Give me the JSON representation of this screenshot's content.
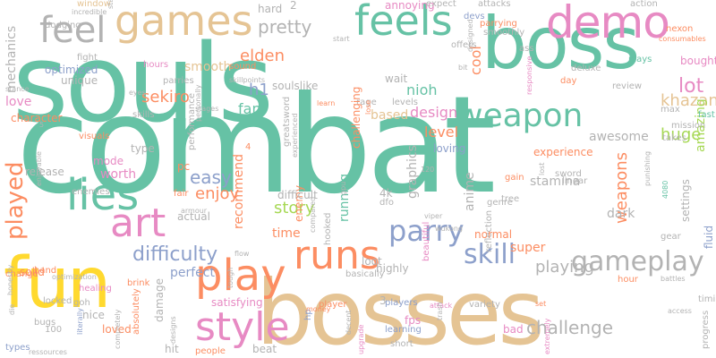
{
  "colors": {
    "teal": "#66c2a5",
    "tan": "#e5c494",
    "orange": "#fc8d62",
    "blue": "#8da0cb",
    "pink": "#e78ac3",
    "green": "#a6d854",
    "yellow": "#ffd92f",
    "gray": "#b3b3b3"
  },
  "words": [
    {
      "text": "combat",
      "color": "teal",
      "size": 150
    },
    {
      "text": "souls",
      "color": "teal",
      "size": 120
    },
    {
      "text": "bosses",
      "color": "tan",
      "size": 100
    },
    {
      "text": "boss",
      "color": "teal",
      "size": 80
    },
    {
      "text": "fun",
      "color": "yellow",
      "size": 78
    },
    {
      "text": "demo",
      "color": "pink",
      "size": 50
    },
    {
      "text": "games",
      "color": "tan",
      "size": 46
    },
    {
      "text": "feels",
      "color": "teal",
      "size": 46
    },
    {
      "text": "feel",
      "color": "gray",
      "size": 40
    },
    {
      "text": "lies",
      "color": "teal",
      "size": 48
    },
    {
      "text": "art",
      "color": "pink",
      "size": 44
    },
    {
      "text": "play",
      "color": "orange",
      "size": 48
    },
    {
      "text": "style",
      "color": "pink",
      "size": 44
    },
    {
      "text": "runs",
      "color": "orange",
      "size": 44
    },
    {
      "text": "parry",
      "color": "blue",
      "size": 32
    },
    {
      "text": "skill",
      "color": "blue",
      "size": 30
    },
    {
      "text": "gameplay",
      "color": "gray",
      "size": 30
    },
    {
      "text": "weapon",
      "color": "teal",
      "size": 36
    },
    {
      "text": "played",
      "color": "orange",
      "size": 26
    },
    {
      "text": "difficulty",
      "color": "blue",
      "size": 22
    },
    {
      "text": "playing",
      "color": "gray",
      "size": 18
    },
    {
      "text": "challenge",
      "color": "gray",
      "size": 20
    },
    {
      "text": "lot",
      "color": "pink",
      "size": 22
    },
    {
      "text": "khazan",
      "color": "tan",
      "size": 18
    },
    {
      "text": "huge",
      "color": "green",
      "size": 18
    },
    {
      "text": "easy",
      "color": "blue",
      "size": 20
    },
    {
      "text": "enjoy",
      "color": "orange",
      "size": 18
    },
    {
      "text": "story",
      "color": "green",
      "size": 18
    },
    {
      "text": "sekiro",
      "color": "orange",
      "size": 18
    },
    {
      "text": "h1",
      "color": "blue",
      "size": 18
    },
    {
      "text": "elden",
      "color": "orange",
      "size": 18
    },
    {
      "text": "pretty",
      "color": "gray",
      "size": 20
    },
    {
      "text": "hard",
      "color": "gray",
      "size": 12
    },
    {
      "text": "2",
      "color": "gray",
      "size": 12
    },
    {
      "text": "fan",
      "color": "teal",
      "size": 16
    },
    {
      "text": "nioh",
      "color": "teal",
      "size": 16
    },
    {
      "text": "design",
      "color": "pink",
      "size": 16
    },
    {
      "text": "level",
      "color": "orange",
      "size": 16
    },
    {
      "text": "loving",
      "color": "blue",
      "size": 12
    },
    {
      "text": "based",
      "color": "tan",
      "size": 14
    },
    {
      "text": "awesome",
      "color": "gray",
      "size": 14
    },
    {
      "text": "experience",
      "color": "orange",
      "size": 12
    },
    {
      "text": "cool",
      "color": "orange",
      "size": 16
    },
    {
      "text": "amazing",
      "color": "green",
      "size": 14
    },
    {
      "text": "weapons",
      "color": "orange",
      "size": 18
    },
    {
      "text": "dark",
      "color": "gray",
      "size": 14
    },
    {
      "text": "stamina",
      "color": "gray",
      "size": 14
    },
    {
      "text": "worth",
      "color": "pink",
      "size": 14
    },
    {
      "text": "mode",
      "color": "pink",
      "size": 12
    },
    {
      "text": "love",
      "color": "pink",
      "size": 14
    },
    {
      "text": "mechanics",
      "color": "gray",
      "size": 14
    },
    {
      "text": "smooth",
      "color": "tan",
      "size": 14
    },
    {
      "text": "graphics",
      "color": "gray",
      "size": 14
    },
    {
      "text": "running",
      "color": "teal",
      "size": 14
    },
    {
      "text": "recommend",
      "color": "orange",
      "size": 14
    },
    {
      "text": "time",
      "color": "orange",
      "size": 14
    },
    {
      "text": "super",
      "color": "orange",
      "size": 14
    },
    {
      "text": "anime",
      "color": "gray",
      "size": 14
    },
    {
      "text": "perfect",
      "color": "blue",
      "size": 14
    },
    {
      "text": "enemy",
      "color": "orange",
      "size": 12
    },
    {
      "text": "unique",
      "color": "gray",
      "size": 12
    },
    {
      "text": "optimized",
      "color": "blue",
      "size": 12
    },
    {
      "text": "window",
      "color": "tan",
      "size": 10
    },
    {
      "text": "incredible",
      "color": "gray",
      "size": 8
    },
    {
      "text": "dodging",
      "color": "gray",
      "size": 10
    },
    {
      "text": "fight",
      "color": "gray",
      "size": 10
    },
    {
      "text": "hours",
      "color": "pink",
      "size": 10
    },
    {
      "text": "parries",
      "color": "gray",
      "size": 10
    },
    {
      "text": "soulslike",
      "color": "gray",
      "size": 12
    },
    {
      "text": "sound",
      "color": "orange",
      "size": 10
    },
    {
      "text": "wait",
      "color": "gray",
      "size": 12
    },
    {
      "text": "annoying",
      "color": "pink",
      "size": 12
    },
    {
      "text": "expect",
      "color": "gray",
      "size": 10
    },
    {
      "text": "devs",
      "color": "blue",
      "size": 10
    },
    {
      "text": "attacks",
      "color": "gray",
      "size": 10
    },
    {
      "text": "action",
      "color": "gray",
      "size": 10
    },
    {
      "text": "consumables",
      "color": "orange",
      "size": 8
    },
    {
      "text": "parrying",
      "color": "orange",
      "size": 10
    },
    {
      "text": "smoothly",
      "color": "gray",
      "size": 10
    },
    {
      "text": "offers",
      "color": "gray",
      "size": 10
    },
    {
      "text": "ass",
      "color": "gray",
      "size": 10
    },
    {
      "text": "plays",
      "color": "teal",
      "size": 10
    },
    {
      "text": "bought",
      "color": "pink",
      "size": 12
    },
    {
      "text": "deluxe",
      "color": "gray",
      "size": 10
    },
    {
      "text": "day",
      "color": "orange",
      "size": 10
    },
    {
      "text": "review",
      "color": "gray",
      "size": 10
    },
    {
      "text": "levels",
      "color": "gray",
      "size": 10
    },
    {
      "text": "fast",
      "color": "teal",
      "size": 10
    },
    {
      "text": "mission",
      "color": "gray",
      "size": 10
    },
    {
      "text": "max",
      "color": "gray",
      "size": 10
    },
    {
      "text": "takes",
      "color": "gray",
      "size": 10
    },
    {
      "text": "settings",
      "color": "gray",
      "size": 12
    },
    {
      "text": "fluid",
      "color": "blue",
      "size": 12
    },
    {
      "text": "timing",
      "color": "gray",
      "size": 10
    },
    {
      "text": "access",
      "color": "gray",
      "size": 8
    },
    {
      "text": "progress",
      "color": "gray",
      "size": 10
    },
    {
      "text": "battles",
      "color": "gray",
      "size": 8
    },
    {
      "text": "hour",
      "color": "orange",
      "size": 10
    },
    {
      "text": "gear",
      "color": "gray",
      "size": 10
    },
    {
      "text": "punishing",
      "color": "gray",
      "size": 8
    },
    {
      "text": "4080",
      "color": "teal",
      "size": 8
    },
    {
      "text": "set",
      "color": "orange",
      "size": 8
    },
    {
      "text": "bad",
      "color": "pink",
      "size": 12
    },
    {
      "text": "extremely",
      "color": "pink",
      "size": 8
    },
    {
      "text": "variety",
      "color": "gray",
      "size": 10
    },
    {
      "text": "players",
      "color": "blue",
      "size": 10
    },
    {
      "text": "fps",
      "color": "pink",
      "size": 12
    },
    {
      "text": "learning",
      "color": "blue",
      "size": 10
    },
    {
      "text": "short",
      "color": "gray",
      "size": 10
    },
    {
      "text": "upgrade",
      "color": "pink",
      "size": 8
    },
    {
      "text": "decent",
      "color": "gray",
      "size": 8
    },
    {
      "text": "hp",
      "color": "blue",
      "size": 10
    },
    {
      "text": "player",
      "color": "orange",
      "size": 10
    },
    {
      "text": "beat",
      "color": "gray",
      "size": 12
    },
    {
      "text": "people",
      "color": "orange",
      "size": 10
    },
    {
      "text": "hit",
      "color": "gray",
      "size": 12
    },
    {
      "text": "damage",
      "color": "gray",
      "size": 12
    },
    {
      "text": "satisfying",
      "color": "pink",
      "size": 12
    },
    {
      "text": "highly",
      "color": "gray",
      "size": 12
    },
    {
      "text": "basically",
      "color": "gray",
      "size": 10
    },
    {
      "text": "loot",
      "color": "gray",
      "size": 12
    },
    {
      "text": "normal",
      "color": "orange",
      "size": 12
    },
    {
      "text": "3",
      "color": "gray",
      "size": 12
    },
    {
      "text": "actual",
      "color": "gray",
      "size": 12
    },
    {
      "text": "fair",
      "color": "orange",
      "size": 10
    },
    {
      "text": "pc",
      "color": "orange",
      "size": 12
    },
    {
      "text": "type",
      "color": "gray",
      "size": 12
    },
    {
      "text": "visuals",
      "color": "orange",
      "size": 10
    },
    {
      "text": "character",
      "color": "orange",
      "size": 12
    },
    {
      "text": "release",
      "color": "gray",
      "size": 12
    },
    {
      "text": "solid",
      "color": "orange",
      "size": 12
    },
    {
      "text": "enemies",
      "color": "gray",
      "size": 10
    },
    {
      "text": "brink",
      "color": "orange",
      "size": 10
    },
    {
      "text": "locked",
      "color": "gray",
      "size": 10
    },
    {
      "text": "healing",
      "color": "pink",
      "size": 10
    },
    {
      "text": "goh",
      "color": "gray",
      "size": 10
    },
    {
      "text": "nice",
      "color": "gray",
      "size": 12
    },
    {
      "text": "loved",
      "color": "orange",
      "size": 12
    },
    {
      "text": "bugs",
      "color": "gray",
      "size": 10
    },
    {
      "text": "100",
      "color": "gray",
      "size": 10
    },
    {
      "text": "types",
      "color": "blue",
      "size": 10
    },
    {
      "text": "change",
      "color": "orange",
      "size": 10
    },
    {
      "text": "die",
      "color": "gray",
      "size": 8
    },
    {
      "text": "hand",
      "color": "orange",
      "size": 10
    },
    {
      "text": "optimization",
      "color": "gray",
      "size": 8
    },
    {
      "text": "ressources",
      "color": "gray",
      "size": 8
    },
    {
      "text": "skills",
      "color": "gray",
      "size": 10
    },
    {
      "text": "performance",
      "color": "gray",
      "size": 10
    },
    {
      "text": "stages",
      "color": "gray",
      "size": 8
    },
    {
      "text": "eyes",
      "color": "gray",
      "size": 8
    },
    {
      "text": "greatsword",
      "color": "gray",
      "size": 10
    },
    {
      "text": "learn",
      "color": "orange",
      "size": 8
    },
    {
      "text": "start",
      "color": "gray",
      "size": 8
    },
    {
      "text": "rage",
      "color": "gray",
      "size": 10
    },
    {
      "text": "lose",
      "color": "orange",
      "size": 8
    },
    {
      "text": "bit",
      "color": "gray",
      "size": 8
    },
    {
      "text": "sword",
      "color": "gray",
      "size": 10
    },
    {
      "text": "linear",
      "color": "gray",
      "size": 10
    },
    {
      "text": "gain",
      "color": "orange",
      "size": 10
    },
    {
      "text": "tree",
      "color": "gray",
      "size": 10
    },
    {
      "text": "120",
      "color": "gray",
      "size": 8
    },
    {
      "text": "4k",
      "color": "gray",
      "size": 12
    },
    {
      "text": "dfo",
      "color": "gray",
      "size": 10
    },
    {
      "text": "viper",
      "color": "gray",
      "size": 8
    },
    {
      "text": "wukong",
      "color": "gray",
      "size": 8
    },
    {
      "text": "attack",
      "color": "pink",
      "size": 8
    },
    {
      "text": "trash",
      "color": "gray",
      "size": 8
    },
    {
      "text": "money",
      "color": "orange",
      "size": 8
    },
    {
      "text": "genre",
      "color": "gray",
      "size": 10
    },
    {
      "text": "nexon",
      "color": "orange",
      "size": 10
    },
    {
      "text": "stance",
      "color": "gray",
      "size": 8
    },
    {
      "text": "flow",
      "color": "gray",
      "size": 8
    },
    {
      "text": "armour",
      "color": "gray",
      "size": 8
    },
    {
      "text": "4",
      "color": "orange",
      "size": 10
    },
    {
      "text": "stat",
      "color": "gray",
      "size": 8
    },
    {
      "text": "skillpoints",
      "color": "gray",
      "size": 8
    },
    {
      "text": "experienced",
      "color": "gray",
      "size": 8
    },
    {
      "text": "enjoyable",
      "color": "gray",
      "size": 8
    },
    {
      "text": "personally",
      "color": "gray",
      "size": 8
    },
    {
      "text": "honestly",
      "color": "gray",
      "size": 8
    },
    {
      "text": "challenging",
      "color": "orange",
      "size": 12
    },
    {
      "text": "beautiful",
      "color": "pink",
      "size": 10
    },
    {
      "text": "reflection",
      "color": "gray",
      "size": 10
    },
    {
      "text": "difficult",
      "color": "gray",
      "size": 12
    },
    {
      "text": "hooked",
      "color": "gray",
      "size": 10
    },
    {
      "text": "compared",
      "color": "gray",
      "size": 8
    },
    {
      "text": "gpu",
      "color": "gray",
      "size": 8
    },
    {
      "text": "tough",
      "color": "gray",
      "size": 8
    },
    {
      "text": "designs",
      "color": "gray",
      "size": 8
    },
    {
      "text": "absolutely",
      "color": "orange",
      "size": 10
    },
    {
      "text": "completely",
      "color": "gray",
      "size": 8
    },
    {
      "text": "literally",
      "color": "blue",
      "size": 8
    },
    {
      "text": "designed",
      "color": "gray",
      "size": 8
    },
    {
      "text": "responsive",
      "color": "pink",
      "size": 8
    },
    {
      "text": "lost",
      "color": "gray",
      "size": 8
    },
    {
      "text": "5",
      "color": "gray",
      "size": 8
    }
  ]
}
